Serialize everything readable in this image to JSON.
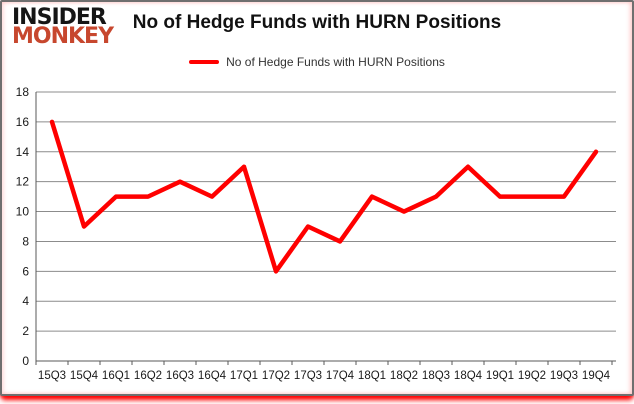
{
  "brand": {
    "line1": "INSIDER",
    "line2": "MONKEY",
    "line1_color": "#151515",
    "line2_color": "#c7472e"
  },
  "header": {
    "title": "No of Hedge Funds with HURN Positions"
  },
  "legend": {
    "label": "No of Hedge Funds with HURN Positions",
    "swatch_color": "#ff0000"
  },
  "chart_data": {
    "type": "line",
    "title": "No of Hedge Funds with HURN Positions",
    "categories": [
      "15Q3",
      "15Q4",
      "16Q1",
      "16Q2",
      "16Q3",
      "16Q4",
      "17Q1",
      "17Q2",
      "17Q3",
      "17Q4",
      "18Q1",
      "18Q2",
      "18Q3",
      "18Q4",
      "19Q1",
      "19Q2",
      "19Q3",
      "19Q4"
    ],
    "values": [
      16,
      9,
      11,
      11,
      12,
      11,
      13,
      6,
      9,
      8,
      11,
      10,
      11,
      13,
      11,
      11,
      11,
      14
    ],
    "xlabel": "",
    "ylabel": "",
    "ylim": [
      0,
      18
    ],
    "ytick_step": 2,
    "grid": true,
    "legend": [
      "No of Hedge Funds with HURN Positions"
    ],
    "legend_position": "top-center",
    "line_color": "#ff0000",
    "line_width": 4.5,
    "grid_color": "#8c8c8c",
    "axis_color": "#595959",
    "tick_label_color": "#1a1a1a"
  },
  "frame": {
    "border_color": "#6f6f6f",
    "glow_color": "#ff0000",
    "background": "#ffffff"
  }
}
